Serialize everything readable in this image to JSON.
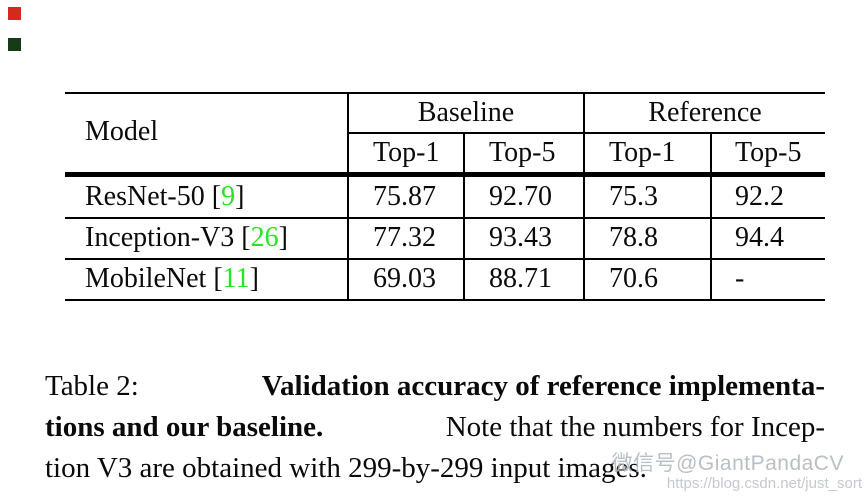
{
  "artifacts": {
    "red_square_color": "#d6291e",
    "dark_square_color": "#173a17"
  },
  "table": {
    "header": {
      "model": "Model",
      "baseline": "Baseline",
      "reference": "Reference",
      "sub_columns": [
        "Top-1",
        "Top-5",
        "Top-1",
        "Top-5"
      ]
    },
    "bracket_open": "[",
    "bracket_close": "]",
    "cite_color": "#27e427",
    "rows": [
      {
        "model": "ResNet-50",
        "cite": "9",
        "b_top1": "75.87",
        "b_top5": "92.70",
        "r_top1": "75.3",
        "r_top5": "92.2"
      },
      {
        "model": "Inception-V3",
        "cite": "26",
        "b_top1": "77.32",
        "b_top5": "93.43",
        "r_top1": "78.8",
        "r_top5": "94.4"
      },
      {
        "model": "MobileNet",
        "cite": "11",
        "b_top1": "69.03",
        "b_top5": "88.71",
        "r_top1": "70.6",
        "r_top5": "-"
      }
    ]
  },
  "caption": {
    "label": "Table 2:",
    "bold_part1": "Validation accuracy of reference implementa-",
    "bold_part2": "tions and our baseline.",
    "regular_part1": "Note that the numbers for Incep-",
    "regular_part2": "tion V3 are obtained with 299-by-299 input images."
  },
  "watermark": {
    "wechat": "微信号@GiantPandaCV",
    "url": "https://blog.csdn.net/just_sort"
  }
}
